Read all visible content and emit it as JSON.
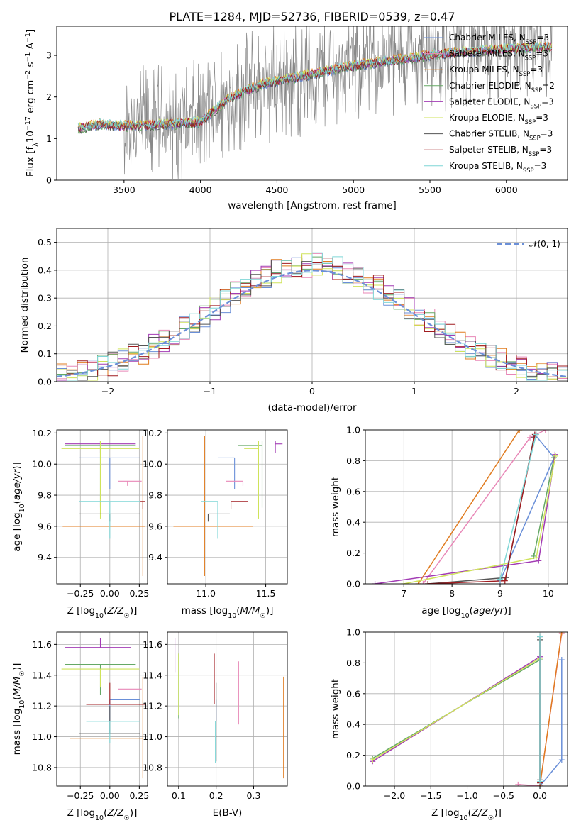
{
  "figure": {
    "title": "PLATE=1284, MJD=52736, FIBERID=0539, z=0.47"
  },
  "series_colors": {
    "Chabrier MILES": "#6a8fd8",
    "Salpeter MILES": "#e887b7",
    "Kroupa MILES": "#e07b1f",
    "Chabrier ELODIE": "#65a865",
    "Salpeter ELODIE": "#a23bb4",
    "Kroupa ELODIE": "#cfe35a",
    "Chabrier STELIB": "#555555",
    "Salpeter STELIB": "#a01c20",
    "Kroupa STELIB": "#7fd6d6"
  },
  "chart_data": [
    {
      "id": "spectrum",
      "type": "line",
      "title": "PLATE=1284, MJD=52736, FIBERID=0539, z=0.47",
      "xlabel": "wavelength [Angstrom, rest frame]",
      "ylabel": "Flux [f_λ10^-17 erg cm^-2 s^-1 A^-1]",
      "xlim": [
        3060,
        6400
      ],
      "ylim": [
        0,
        3.7
      ],
      "xticks": [
        3500,
        4000,
        4500,
        5000,
        5500,
        6000
      ],
      "yticks": [
        0,
        1,
        2,
        3
      ],
      "grid": false,
      "legend_position": "right",
      "legend": [
        {
          "label": "Chabrier MILES",
          "nssp": "3"
        },
        {
          "label": "Salpeter MILES",
          "nssp": "3"
        },
        {
          "label": "Kroupa MILES",
          "nssp": "3"
        },
        {
          "label": "Chabrier ELODIE",
          "nssp": "2"
        },
        {
          "label": "Salpeter ELODIE",
          "nssp": "3"
        },
        {
          "label": "Kroupa ELODIE",
          "nssp": "3"
        },
        {
          "label": "Chabrier STELIB",
          "nssp": "3"
        },
        {
          "label": "Salpeter STELIB",
          "nssp": "3"
        },
        {
          "label": "Kroupa STELIB",
          "nssp": "3"
        }
      ],
      "data_trend": {
        "x": [
          3200,
          3350,
          3500,
          3650,
          3800,
          4000,
          4200,
          4400,
          4600,
          4800,
          5000,
          5200,
          5400,
          5600,
          5800,
          6000,
          6200
        ],
        "y": [
          1.25,
          1.35,
          1.3,
          1.32,
          1.35,
          1.4,
          2.0,
          2.3,
          2.45,
          2.6,
          2.75,
          2.85,
          2.95,
          3.05,
          3.1,
          3.15,
          3.2
        ]
      },
      "data_noise_note_values": {
        "noise_start_wavelength": 3500,
        "noise_amplitude": 1.0
      }
    },
    {
      "id": "residuals",
      "type": "bar",
      "xlabel": "(data-model)/error",
      "ylabel": "Normed distribution",
      "xlim": [
        -2.5,
        2.5
      ],
      "ylim": [
        0,
        0.55
      ],
      "xticks": [
        -2,
        -1,
        0,
        1,
        2
      ],
      "yticks": [
        0.0,
        0.1,
        0.2,
        0.3,
        0.4,
        0.5
      ],
      "grid": true,
      "legend_position": "top-right",
      "legend": [
        "N(0,1)"
      ],
      "gaussian": {
        "mean": 0,
        "sigma": 1
      },
      "bin_width": 0.1
    },
    {
      "id": "age-vs-z",
      "type": "scatter",
      "xlabel": "Z [log10(Z/Z☉)]",
      "ylabel": "age [log10(age/yr)]",
      "xlim": [
        -0.45,
        0.32
      ],
      "ylim": [
        9.23,
        10.22
      ],
      "xticks": [
        -0.25,
        0.0,
        0.25
      ],
      "yticks": [
        9.4,
        9.6,
        9.8,
        10.0,
        10.2
      ],
      "grid": true,
      "points": [
        {
          "series": "Chabrier MILES",
          "x": 0.0,
          "y": 10.04,
          "xerr": [
            0.26,
            0.26
          ],
          "yerr": [
            0.2,
            0.0
          ]
        },
        {
          "series": "Salpeter MILES",
          "x": 0.15,
          "y": 9.89,
          "xerr": [
            0.08,
            0.12
          ],
          "yerr": [
            0.03,
            0.0
          ]
        },
        {
          "series": "Kroupa MILES",
          "x": 0.28,
          "y": 9.6,
          "xerr": [
            0.68,
            0.02
          ],
          "yerr": [
            0.32,
            0.58
          ]
        },
        {
          "series": "Chabrier ELODIE",
          "x": -0.08,
          "y": 10.12,
          "xerr": [
            0.3,
            0.3
          ],
          "yerr": [
            0.4,
            0.03
          ]
        },
        {
          "series": "Salpeter ELODIE",
          "x": -0.08,
          "y": 10.13,
          "xerr": [
            0.3,
            0.3
          ],
          "yerr": [
            0.06,
            0.02
          ]
        },
        {
          "series": "Kroupa ELODIE",
          "x": -0.08,
          "y": 10.1,
          "xerr": [
            0.33,
            0.33
          ],
          "yerr": [
            0.45,
            0.05
          ]
        },
        {
          "series": "Chabrier STELIB",
          "x": 0.0,
          "y": 9.68,
          "xerr": [
            0.26,
            0.26
          ],
          "yerr": [
            0.05,
            0.0
          ]
        },
        {
          "series": "Salpeter STELIB",
          "x": 0.28,
          "y": 9.76,
          "xerr": [
            0.02,
            0.02
          ],
          "yerr": [
            0.05,
            0.0
          ]
        },
        {
          "series": "Kroupa STELIB",
          "x": 0.0,
          "y": 9.76,
          "xerr": [
            0.26,
            0.26
          ],
          "yerr": [
            0.24,
            0.0
          ]
        }
      ]
    },
    {
      "id": "age-vs-mass",
      "type": "scatter",
      "xlabel": "mass [log10(M/M☉)]",
      "ylabel": "",
      "xlim": [
        10.68,
        11.68
      ],
      "ylim": [
        9.23,
        10.22
      ],
      "xticks": [
        11.0,
        11.5
      ],
      "yticks": [
        9.4,
        9.6,
        9.8,
        10.0,
        10.2
      ],
      "grid": true,
      "points": [
        {
          "series": "Chabrier MILES",
          "x": 11.24,
          "y": 10.04,
          "xerr": [
            0.14,
            0.0
          ],
          "yerr": [
            0.2,
            0.0
          ]
        },
        {
          "series": "Salpeter MILES",
          "x": 11.31,
          "y": 9.89,
          "xerr": [
            0.14,
            0.0
          ],
          "yerr": [
            0.03,
            0.0
          ]
        },
        {
          "series": "Kroupa MILES",
          "x": 10.99,
          "y": 9.6,
          "xerr": [
            0.26,
            0.4
          ],
          "yerr": [
            0.32,
            0.58
          ]
        },
        {
          "series": "Chabrier ELODIE",
          "x": 11.47,
          "y": 10.12,
          "xerr": [
            0.2,
            0.0
          ],
          "yerr": [
            0.4,
            0.03
          ]
        },
        {
          "series": "Salpeter ELODIE",
          "x": 11.58,
          "y": 10.13,
          "xerr": [
            0.0,
            0.06
          ],
          "yerr": [
            0.06,
            0.02
          ]
        },
        {
          "series": "Kroupa ELODIE",
          "x": 11.44,
          "y": 10.1,
          "xerr": [
            0.12,
            0.0
          ],
          "yerr": [
            0.45,
            0.05
          ]
        },
        {
          "series": "Chabrier STELIB",
          "x": 11.02,
          "y": 9.68,
          "xerr": [
            0.0,
            0.18
          ],
          "yerr": [
            0.05,
            0.0
          ]
        },
        {
          "series": "Salpeter STELIB",
          "x": 11.21,
          "y": 9.76,
          "xerr": [
            0.0,
            0.14
          ],
          "yerr": [
            0.05,
            0.0
          ]
        },
        {
          "series": "Kroupa STELIB",
          "x": 11.1,
          "y": 9.76,
          "xerr": [
            0.14,
            0.0
          ],
          "yerr": [
            0.24,
            0.0
          ]
        }
      ]
    },
    {
      "id": "weight-vs-age",
      "type": "line",
      "xlabel": "age [log10(age/yr)]",
      "ylabel": "mass weight",
      "xlim": [
        6.2,
        10.4
      ],
      "ylim": [
        0,
        1
      ],
      "xticks": [
        7,
        8,
        9,
        10
      ],
      "yticks": [
        0.0,
        0.2,
        0.4,
        0.6,
        0.8,
        1.0
      ],
      "grid": true,
      "series": [
        {
          "name": "Chabrier MILES",
          "x": [
            9.0,
            10.12,
            9.72
          ],
          "y": [
            0.02,
            0.82,
            0.97
          ]
        },
        {
          "name": "Salpeter MILES",
          "x": [
            7.4,
            9.62,
            9.94
          ],
          "y": [
            0.0,
            0.95,
            1.0
          ]
        },
        {
          "name": "Kroupa MILES",
          "x": [
            7.3,
            9.4
          ],
          "y": [
            0.0,
            1.0
          ]
        },
        {
          "name": "Chabrier ELODIE",
          "x": [
            9.7,
            10.12
          ],
          "y": [
            0.18,
            0.82
          ]
        },
        {
          "name": "Salpeter ELODIE",
          "x": [
            6.4,
            9.8,
            10.14
          ],
          "y": [
            0.0,
            0.15,
            0.84
          ]
        },
        {
          "name": "Kroupa ELODIE",
          "x": [
            7.0,
            9.75,
            10.15
          ],
          "y": [
            0.0,
            0.17,
            0.83
          ]
        },
        {
          "name": "Chabrier STELIB",
          "x": [
            7.5,
            9.12,
            9.7
          ],
          "y": [
            0.0,
            0.04,
            0.95
          ]
        },
        {
          "name": "Salpeter STELIB",
          "x": [
            7.5,
            9.1,
            9.72
          ],
          "y": [
            0.0,
            0.02,
            0.97
          ]
        },
        {
          "name": "Kroupa STELIB",
          "x": [
            9.0,
            9.75
          ],
          "y": [
            0.03,
            0.97
          ]
        }
      ]
    },
    {
      "id": "mass-vs-z",
      "type": "scatter",
      "xlabel": "Z [log10(Z/Z☉)]",
      "ylabel": "mass [log10(M/M☉)]",
      "xlim": [
        -0.45,
        0.32
      ],
      "ylim": [
        10.68,
        11.68
      ],
      "xticks": [
        -0.25,
        0.0,
        0.25
      ],
      "yticks": [
        10.8,
        11.0,
        11.2,
        11.4,
        11.6
      ],
      "grid": true,
      "points": [
        {
          "series": "Chabrier MILES",
          "x": 0.0,
          "y": 11.24,
          "xerr": [
            0.0,
            0.26
          ],
          "yerr": [
            0.14,
            0.0
          ]
        },
        {
          "series": "Salpeter MILES",
          "x": 0.15,
          "y": 11.31,
          "xerr": [
            0.08,
            0.12
          ],
          "yerr": [
            0.0,
            0.0
          ]
        },
        {
          "series": "Kroupa MILES",
          "x": 0.28,
          "y": 10.99,
          "xerr": [
            0.62,
            0.0
          ],
          "yerr": [
            0.26,
            0.4
          ]
        },
        {
          "series": "Chabrier ELODIE",
          "x": -0.08,
          "y": 11.47,
          "xerr": [
            0.3,
            0.3
          ],
          "yerr": [
            0.2,
            0.0
          ]
        },
        {
          "series": "Salpeter ELODIE",
          "x": -0.08,
          "y": 11.58,
          "xerr": [
            0.3,
            0.26
          ],
          "yerr": [
            0.0,
            0.06
          ]
        },
        {
          "series": "Kroupa ELODIE",
          "x": -0.08,
          "y": 11.44,
          "xerr": [
            0.33,
            0.33
          ],
          "yerr": [
            0.12,
            0.0
          ]
        },
        {
          "series": "Chabrier STELIB",
          "x": 0.0,
          "y": 11.02,
          "xerr": [
            0.26,
            0.26
          ],
          "yerr": [
            0.0,
            0.18
          ]
        },
        {
          "series": "Salpeter STELIB",
          "x": 0.0,
          "y": 11.21,
          "xerr": [
            0.2,
            0.3
          ],
          "yerr": [
            0.0,
            0.14
          ]
        },
        {
          "series": "Kroupa STELIB",
          "x": 0.0,
          "y": 11.1,
          "xerr": [
            0.2,
            0.26
          ],
          "yerr": [
            0.14,
            0.0
          ]
        }
      ]
    },
    {
      "id": "mass-vs-ebv",
      "type": "scatter",
      "xlabel": "E(B-V)",
      "ylabel": "",
      "xlim": [
        0.07,
        0.39
      ],
      "ylim": [
        10.68,
        11.68
      ],
      "xticks": [
        0.1,
        0.2,
        0.3
      ],
      "yticks": [
        10.8,
        11.0,
        11.2,
        11.4,
        11.6
      ],
      "grid": true,
      "points": [
        {
          "series": "Chabrier MILES",
          "x": 0.2,
          "y": 11.24,
          "yerr": [
            0.14,
            0.0
          ]
        },
        {
          "series": "Salpeter MILES",
          "x": 0.26,
          "y": 11.31,
          "yerr": [
            0.23,
            0.18
          ]
        },
        {
          "series": "Kroupa MILES",
          "x": 0.38,
          "y": 10.99,
          "yerr": [
            0.26,
            0.4
          ]
        },
        {
          "series": "Chabrier ELODIE",
          "x": 0.1,
          "y": 11.47,
          "yerr": [
            0.35,
            0.07
          ]
        },
        {
          "series": "Salpeter ELODIE",
          "x": 0.09,
          "y": 11.58,
          "yerr": [
            0.16,
            0.06
          ]
        },
        {
          "series": "Kroupa ELODIE",
          "x": 0.1,
          "y": 11.44,
          "yerr": [
            0.3,
            0.1
          ]
        },
        {
          "series": "Chabrier STELIB",
          "x": 0.2,
          "y": 11.02,
          "yerr": [
            0.18,
            0.33
          ]
        },
        {
          "series": "Salpeter STELIB",
          "x": 0.195,
          "y": 11.21,
          "yerr": [
            0.0,
            0.33
          ]
        },
        {
          "series": "Kroupa STELIB",
          "x": 0.198,
          "y": 11.1,
          "yerr": [
            0.27,
            0.0
          ]
        }
      ]
    },
    {
      "id": "weight-vs-z",
      "type": "line",
      "xlabel": "Z [log10(Z/Z☉)]",
      "ylabel": "mass weight",
      "xlim": [
        -2.4,
        0.38
      ],
      "ylim": [
        0,
        1
      ],
      "xticks": [
        -2.0,
        -1.5,
        -1.0,
        -0.5,
        0.0
      ],
      "yticks": [
        0.0,
        0.2,
        0.4,
        0.6,
        0.8,
        1.0
      ],
      "grid": true,
      "series": [
        {
          "name": "Chabrier MILES",
          "x": [
            0.0,
            0.3,
            0.3
          ],
          "y": [
            0.0,
            0.17,
            0.82
          ]
        },
        {
          "name": "Salpeter MILES",
          "x": [
            -0.3,
            0.0,
            0.3
          ],
          "y": [
            0.01,
            0.0,
            0.99
          ]
        },
        {
          "name": "Kroupa MILES",
          "x": [
            0.0,
            0.3
          ],
          "y": [
            0.0,
            1.0
          ]
        },
        {
          "name": "Chabrier ELODIE",
          "x": [
            -2.3,
            0.0
          ],
          "y": [
            0.18,
            0.82
          ]
        },
        {
          "name": "Salpeter ELODIE",
          "x": [
            -2.3,
            0.0
          ],
          "y": [
            0.16,
            0.84
          ]
        },
        {
          "name": "Kroupa ELODIE",
          "x": [
            -2.3,
            0.0
          ],
          "y": [
            0.17,
            0.83
          ]
        },
        {
          "name": "Chabrier STELIB",
          "x": [
            0.0,
            0.0
          ],
          "y": [
            0.04,
            0.95
          ]
        },
        {
          "name": "Salpeter STELIB",
          "x": [
            0.0,
            0.0
          ],
          "y": [
            0.02,
            0.97
          ]
        },
        {
          "name": "Kroupa STELIB",
          "x": [
            0.0,
            0.0
          ],
          "y": [
            0.03,
            0.97
          ]
        }
      ]
    }
  ]
}
